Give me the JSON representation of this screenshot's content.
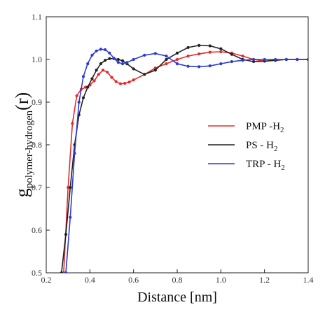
{
  "chart_data": {
    "type": "line",
    "xlabel": "Distance [nm]",
    "ylabel": {
      "main": "g",
      "sub": "polymer-hydrogen",
      "suffix": "(r)"
    },
    "xlim": [
      0.2,
      1.4
    ],
    "ylim": [
      0.5,
      1.1
    ],
    "xticks": [
      0.2,
      0.4,
      0.6,
      0.8,
      1.0,
      1.2,
      1.4
    ],
    "xtick_labels": [
      "0.2",
      "0.4",
      "0.6",
      "0.8",
      "1.0",
      "1.2",
      "1.4"
    ],
    "yticks": [
      0.5,
      0.6,
      0.7,
      0.8,
      0.9,
      1.0,
      1.1
    ],
    "ytick_labels": [
      "0.5",
      "0.6",
      "0.7",
      "0.8",
      "0.9",
      "1.0",
      "1.1"
    ],
    "grid": false,
    "legend_position": "right",
    "series": [
      {
        "name": "PMP -H",
        "name_sub": "2",
        "color": "#e32b2b",
        "x": [
          0.28,
          0.3,
          0.32,
          0.34,
          0.36,
          0.38,
          0.4,
          0.42,
          0.44,
          0.46,
          0.48,
          0.5,
          0.52,
          0.54,
          0.56,
          0.58,
          0.6,
          0.65,
          0.7,
          0.75,
          0.8,
          0.85,
          0.9,
          0.95,
          1.0,
          1.05,
          1.1,
          1.15,
          1.2,
          1.25,
          1.3,
          1.35,
          1.4
        ],
        "y": [
          0.5,
          0.7,
          0.85,
          0.915,
          0.93,
          0.935,
          0.94,
          0.95,
          0.965,
          0.975,
          0.97,
          0.958,
          0.948,
          0.943,
          0.944,
          0.947,
          0.952,
          0.965,
          0.98,
          0.99,
          1.0,
          1.008,
          1.013,
          1.017,
          1.018,
          1.015,
          1.008,
          1.0,
          0.996,
          0.998,
          1.0,
          1.0,
          1.0
        ]
      },
      {
        "name": "PS - H",
        "name_sub": "2",
        "color": "#222222",
        "x": [
          0.27,
          0.29,
          0.31,
          0.33,
          0.35,
          0.37,
          0.39,
          0.41,
          0.43,
          0.45,
          0.47,
          0.49,
          0.51,
          0.53,
          0.55,
          0.57,
          0.6,
          0.65,
          0.7,
          0.75,
          0.8,
          0.85,
          0.9,
          0.95,
          1.0,
          1.05,
          1.1,
          1.15,
          1.2,
          1.25,
          1.3,
          1.35,
          1.4
        ],
        "y": [
          0.5,
          0.59,
          0.7,
          0.8,
          0.87,
          0.91,
          0.935,
          0.955,
          0.975,
          0.99,
          0.998,
          1.002,
          1.002,
          1.0,
          0.997,
          0.99,
          0.978,
          0.965,
          0.975,
          1.0,
          1.015,
          1.028,
          1.033,
          1.032,
          1.025,
          1.012,
          1.0,
          0.995,
          0.996,
          0.998,
          1.0,
          1.0,
          1.0
        ]
      },
      {
        "name": "TRP - H",
        "name_sub": "2",
        "color": "#2c3ad6",
        "x": [
          0.29,
          0.31,
          0.33,
          0.35,
          0.37,
          0.39,
          0.41,
          0.43,
          0.45,
          0.47,
          0.49,
          0.51,
          0.53,
          0.55,
          0.57,
          0.6,
          0.65,
          0.7,
          0.75,
          0.8,
          0.85,
          0.9,
          0.95,
          1.0,
          1.05,
          1.1,
          1.15,
          1.2,
          1.25,
          1.3,
          1.35,
          1.4
        ],
        "y": [
          0.5,
          0.63,
          0.78,
          0.9,
          0.96,
          0.99,
          1.01,
          1.02,
          1.024,
          1.023,
          1.015,
          1.003,
          0.993,
          0.99,
          0.993,
          1.0,
          1.01,
          1.014,
          1.008,
          0.99,
          0.984,
          0.983,
          0.985,
          0.99,
          0.995,
          0.998,
          1.0,
          1.0,
          1.0,
          1.0,
          1.0,
          1.0
        ]
      }
    ]
  }
}
